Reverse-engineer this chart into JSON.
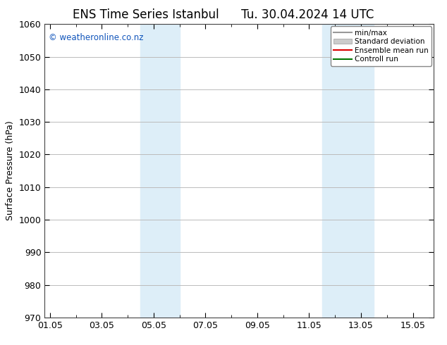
{
  "title": "ENS Time Series Istanbul",
  "title2": "Tu. 30.04.2024 14 UTC",
  "ylabel": "Surface Pressure (hPa)",
  "ylim": [
    970,
    1060
  ],
  "yticks": [
    970,
    980,
    990,
    1000,
    1010,
    1020,
    1030,
    1040,
    1050,
    1060
  ],
  "xtick_labels": [
    "01.05",
    "03.05",
    "05.05",
    "07.05",
    "09.05",
    "11.05",
    "13.05",
    "15.05"
  ],
  "xtick_positions": [
    0,
    2,
    4,
    6,
    8,
    10,
    12,
    14
  ],
  "xlim": [
    -0.2,
    14.8
  ],
  "shaded_bands": [
    {
      "x_start": 3.5,
      "x_end": 5.0,
      "color": "#ddeef8"
    },
    {
      "x_start": 10.5,
      "x_end": 12.5,
      "color": "#ddeef8"
    }
  ],
  "copyright_text": "© weatheronline.co.nz",
  "copyright_color": "#1155bb",
  "legend_items": [
    {
      "label": "min/max",
      "color": "#999999",
      "type": "line"
    },
    {
      "label": "Standard deviation",
      "color": "#cccccc",
      "type": "band"
    },
    {
      "label": "Ensemble mean run",
      "color": "#dd0000",
      "type": "line"
    },
    {
      "label": "Controll run",
      "color": "#007700",
      "type": "line"
    }
  ],
  "background_color": "#ffffff",
  "plot_bg_color": "#ffffff",
  "grid_color": "#bbbbbb",
  "title_fontsize": 12,
  "label_fontsize": 9,
  "tick_fontsize": 9
}
